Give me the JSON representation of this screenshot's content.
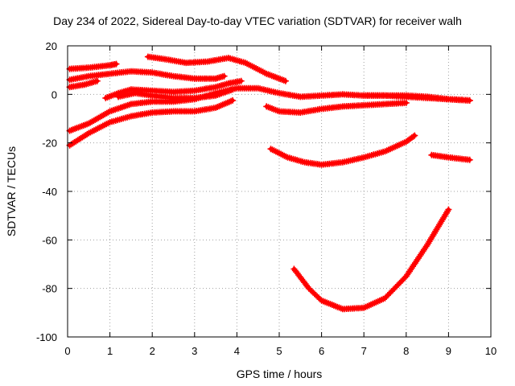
{
  "chart_data": {
    "type": "scatter",
    "title": "Day 234 of 2022, Sidereal Day-to-day VTEC variation (SDTVAR) for receiver walh",
    "xlabel": "GPS time / hours",
    "ylabel": "SDTVAR / TECUs",
    "xlim": [
      0,
      10
    ],
    "ylim": [
      -100,
      20
    ],
    "xticks": [
      0,
      1,
      2,
      3,
      4,
      5,
      6,
      7,
      8,
      9,
      10
    ],
    "yticks": [
      -100,
      -80,
      -60,
      -40,
      -20,
      0,
      20
    ],
    "grid": true,
    "marker": "plus",
    "color": "#ff0000",
    "series": [
      {
        "name": "s1",
        "x": [
          0.05,
          0.5,
          1.0,
          1.15
        ],
        "y": [
          10.5,
          11.0,
          12.0,
          12.5
        ]
      },
      {
        "name": "s2",
        "x": [
          0.05,
          0.5,
          1.0,
          1.5,
          2.0,
          2.5,
          3.0,
          3.5,
          3.7
        ],
        "y": [
          6.0,
          7.5,
          8.5,
          9.5,
          9.0,
          7.5,
          6.5,
          6.5,
          7.5
        ]
      },
      {
        "name": "s3",
        "x": [
          0.05,
          0.4,
          0.7
        ],
        "y": [
          3.0,
          4.0,
          5.5
        ]
      },
      {
        "name": "s4",
        "x": [
          1.9,
          2.3,
          2.8,
          3.3,
          3.8,
          4.2,
          4.7,
          5.15
        ],
        "y": [
          15.5,
          14.5,
          13.0,
          13.5,
          15.0,
          13.0,
          8.5,
          5.5
        ]
      },
      {
        "name": "s5",
        "x": [
          0.9,
          1.2,
          1.5,
          2.0,
          2.5,
          3.0,
          3.5,
          3.8,
          4.1
        ],
        "y": [
          -1.5,
          0.5,
          2.0,
          1.5,
          1.0,
          1.5,
          3.0,
          4.5,
          5.5
        ]
      },
      {
        "name": "s6",
        "x": [
          0.05,
          0.5,
          1.0,
          1.5,
          2.0,
          2.5,
          3.0,
          3.5,
          4.0,
          4.5,
          5.0,
          5.5,
          6.0,
          6.5,
          7.0,
          7.5,
          8.0,
          8.5,
          9.0,
          9.5
        ],
        "y": [
          -15.0,
          -12.0,
          -7.0,
          -4.0,
          -3.0,
          -3.0,
          -2.0,
          0.5,
          2.5,
          2.5,
          0.5,
          -1.0,
          -0.5,
          0.0,
          -0.5,
          -0.5,
          -0.5,
          -1.0,
          -2.0,
          -2.5
        ]
      },
      {
        "name": "s7",
        "x": [
          0.05,
          0.5,
          1.0,
          1.5,
          2.0,
          2.5,
          3.0,
          3.5,
          3.9
        ],
        "y": [
          -21.0,
          -16.0,
          -11.5,
          -9.0,
          -7.5,
          -7.0,
          -7.0,
          -5.5,
          -2.5
        ]
      },
      {
        "name": "s8",
        "x": [
          1.2,
          1.6,
          2.0,
          2.5,
          3.0,
          3.5,
          3.9
        ],
        "y": [
          -1.0,
          0.5,
          -0.5,
          -1.5,
          -1.5,
          -0.5,
          2.0
        ]
      },
      {
        "name": "s9",
        "x": [
          4.7,
          5.0,
          5.5,
          6.0,
          6.5,
          7.0,
          7.5,
          8.0
        ],
        "y": [
          -5.0,
          -7.0,
          -7.5,
          -6.0,
          -5.0,
          -4.5,
          -4.0,
          -3.5
        ]
      },
      {
        "name": "s10",
        "x": [
          7.0,
          7.5,
          8.0,
          8.5,
          9.0,
          9.5
        ],
        "y": [
          -0.5,
          -0.5,
          -1.0,
          -1.5,
          -2.0,
          -2.5
        ]
      },
      {
        "name": "s11",
        "x": [
          4.8,
          5.2,
          5.6,
          6.0,
          6.5,
          7.0,
          7.5,
          8.0,
          8.2
        ],
        "y": [
          -22.5,
          -26.0,
          -28.0,
          -29.0,
          -28.0,
          -26.0,
          -23.5,
          -19.5,
          -17.0
        ]
      },
      {
        "name": "s12",
        "x": [
          8.6,
          9.0,
          9.5
        ],
        "y": [
          -25.0,
          -26.0,
          -27.0
        ]
      },
      {
        "name": "s13",
        "x": [
          5.35,
          5.7,
          6.0,
          6.5,
          7.0,
          7.5,
          8.0,
          8.5,
          9.0
        ],
        "y": [
          -72.0,
          -80.0,
          -85.0,
          -88.5,
          -88.0,
          -84.0,
          -75.0,
          -62.0,
          -47.5
        ]
      }
    ]
  }
}
